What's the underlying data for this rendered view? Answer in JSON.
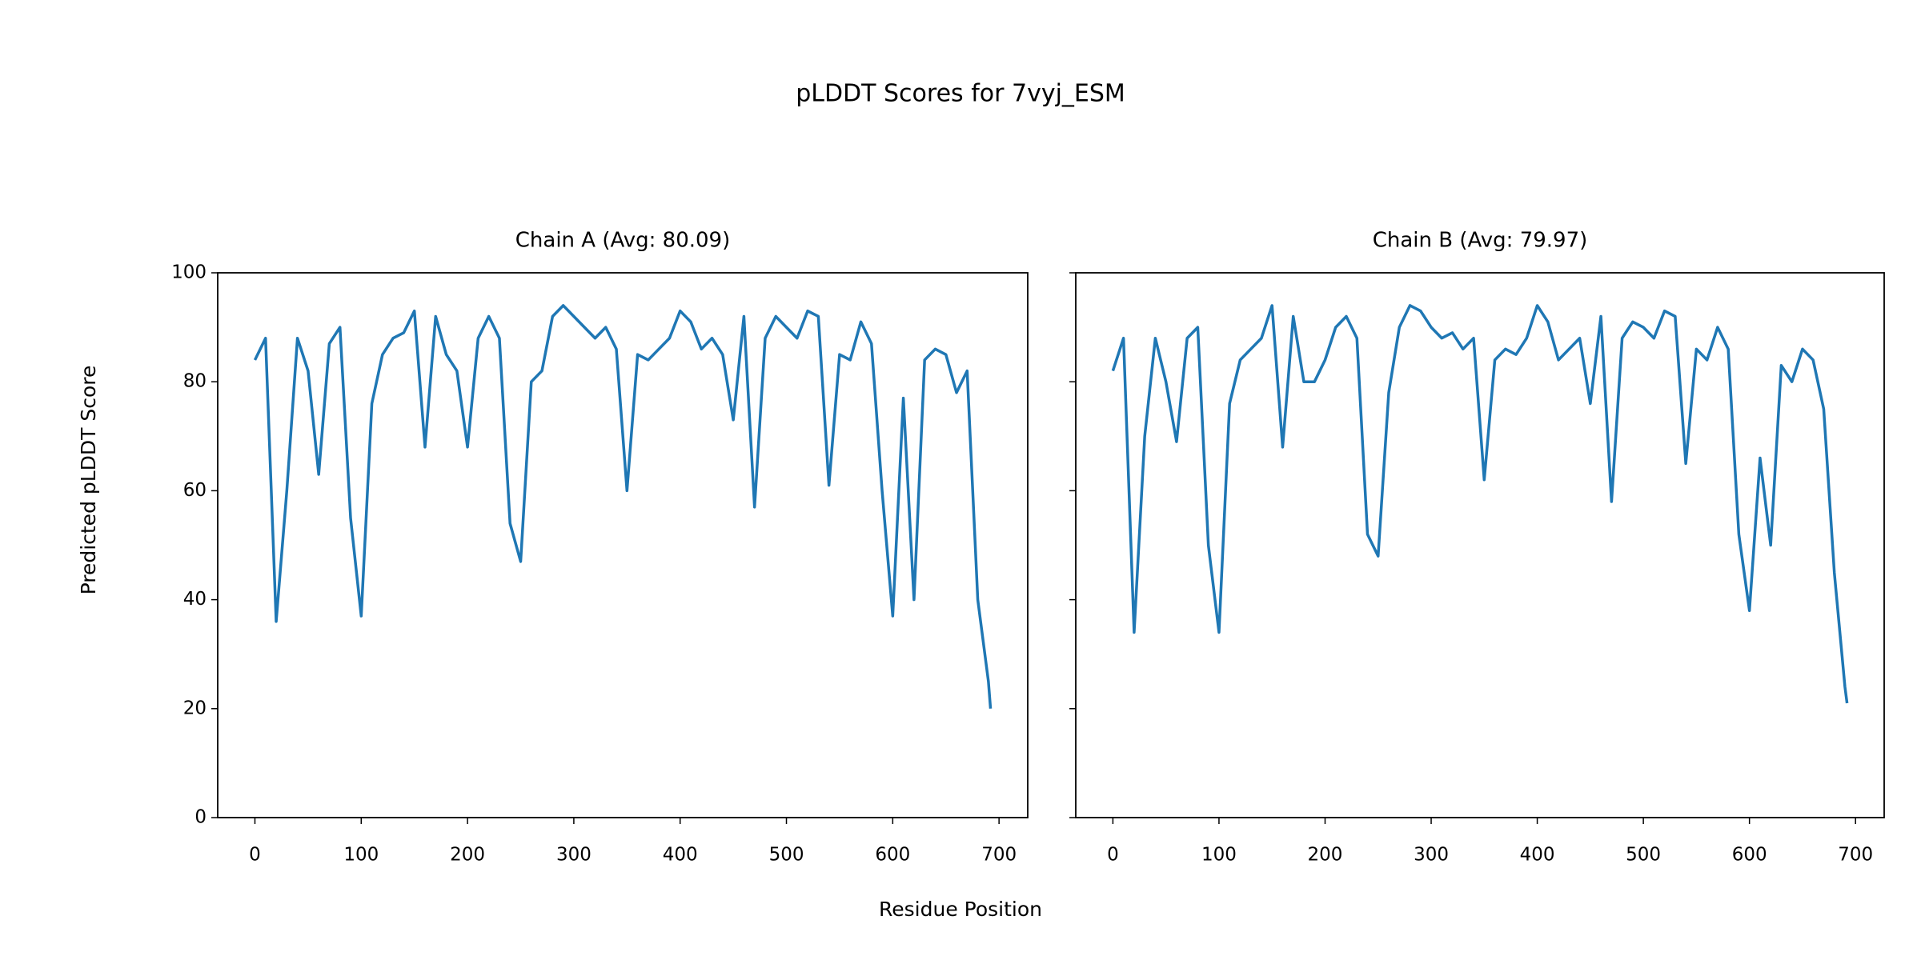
{
  "title": "pLDDT Scores for 7vyj_ESM",
  "x_label": "Residue Position",
  "y_label": "Predicted pLDDT Score",
  "chart_data": [
    {
      "type": "line",
      "title": "Chain A (Avg: 80.09)",
      "x": [
        0,
        10,
        20,
        30,
        40,
        50,
        60,
        70,
        80,
        90,
        100,
        110,
        120,
        130,
        140,
        150,
        160,
        170,
        180,
        190,
        200,
        210,
        220,
        230,
        240,
        250,
        260,
        270,
        280,
        290,
        300,
        310,
        320,
        330,
        340,
        350,
        360,
        370,
        380,
        390,
        400,
        410,
        420,
        430,
        440,
        450,
        460,
        470,
        480,
        490,
        500,
        510,
        520,
        530,
        540,
        550,
        560,
        570,
        580,
        590,
        600,
        610,
        620,
        630,
        640,
        650,
        660,
        670,
        680,
        690,
        692
      ],
      "series": [
        {
          "color": "#1f77b4",
          "values": [
            84,
            88,
            36,
            60,
            88,
            82,
            63,
            87,
            90,
            55,
            37,
            76,
            85,
            88,
            89,
            93,
            68,
            92,
            85,
            82,
            68,
            88,
            92,
            88,
            54,
            47,
            80,
            82,
            92,
            94,
            92,
            90,
            88,
            90,
            86,
            60,
            85,
            84,
            86,
            88,
            93,
            91,
            86,
            88,
            85,
            73,
            92,
            57,
            88,
            92,
            90,
            88,
            93,
            92,
            61,
            85,
            84,
            91,
            87,
            60,
            37,
            77,
            40,
            84,
            86,
            85,
            78,
            82,
            40,
            25,
            20
          ]
        }
      ],
      "xlim": [
        -35,
        727
      ],
      "ylim": [
        0,
        100
      ],
      "xticks": [
        0,
        100,
        200,
        300,
        400,
        500,
        600,
        700
      ],
      "yticks": [
        0,
        20,
        40,
        60,
        80,
        100
      ]
    },
    {
      "type": "line",
      "title": "Chain B (Avg: 79.97)",
      "x": [
        0,
        10,
        20,
        30,
        40,
        50,
        60,
        70,
        80,
        90,
        100,
        110,
        120,
        130,
        140,
        150,
        160,
        170,
        180,
        190,
        200,
        210,
        220,
        230,
        240,
        250,
        260,
        270,
        280,
        290,
        300,
        310,
        320,
        330,
        340,
        350,
        360,
        370,
        380,
        390,
        400,
        410,
        420,
        430,
        440,
        450,
        460,
        470,
        480,
        490,
        500,
        510,
        520,
        530,
        540,
        550,
        560,
        570,
        580,
        590,
        600,
        610,
        620,
        630,
        640,
        650,
        660,
        670,
        680,
        690,
        692
      ],
      "series": [
        {
          "color": "#1f77b4",
          "values": [
            82,
            88,
            34,
            70,
            88,
            80,
            69,
            88,
            90,
            50,
            34,
            76,
            84,
            86,
            88,
            94,
            68,
            92,
            80,
            80,
            84,
            90,
            92,
            88,
            52,
            48,
            78,
            90,
            94,
            93,
            90,
            88,
            89,
            86,
            88,
            62,
            84,
            86,
            85,
            88,
            94,
            91,
            84,
            86,
            88,
            76,
            92,
            58,
            88,
            91,
            90,
            88,
            93,
            92,
            65,
            86,
            84,
            90,
            86,
            52,
            38,
            66,
            50,
            83,
            80,
            86,
            84,
            75,
            45,
            24,
            21
          ]
        }
      ],
      "xlim": [
        -35,
        727
      ],
      "ylim": [
        0,
        100
      ],
      "xticks": [
        0,
        100,
        200,
        300,
        400,
        500,
        600,
        700
      ],
      "yticks": [
        0,
        20,
        40,
        60,
        80,
        100
      ]
    }
  ]
}
